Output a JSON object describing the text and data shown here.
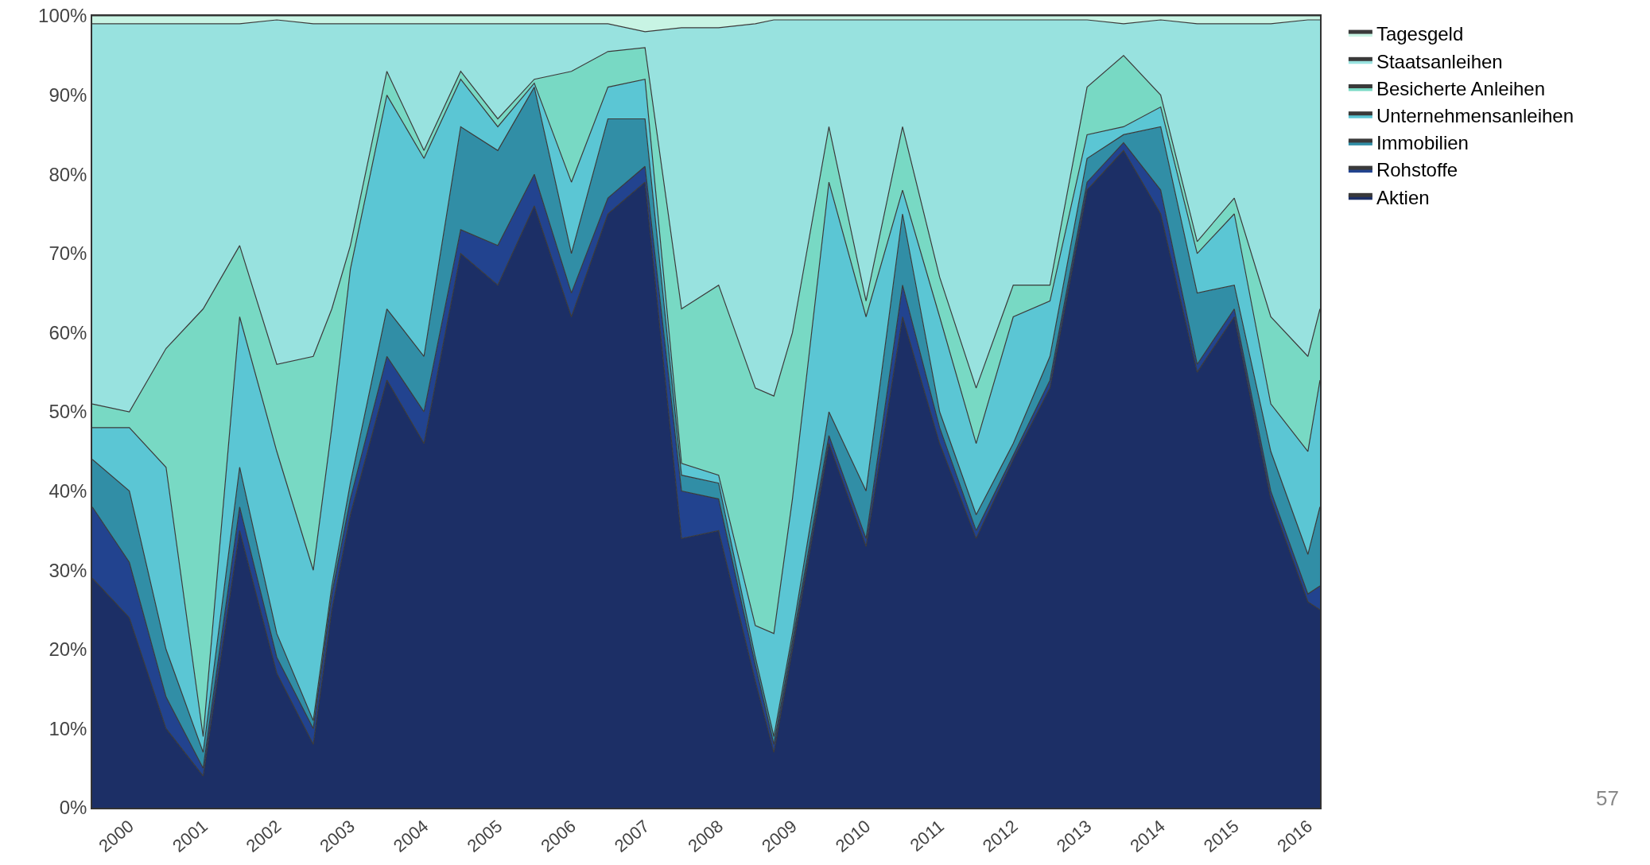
{
  "chart_data": {
    "type": "area",
    "stacked": true,
    "legend": "top right",
    "annotations": [
      "57"
    ],
    "x": [
      "1999-07",
      "2000-01",
      "2000-07",
      "2001-01",
      "2001-07",
      "2002-01",
      "2002-07",
      "2002-10",
      "2003-01",
      "2003-07",
      "2004-01",
      "2004-07",
      "2005-01",
      "2005-07",
      "2006-01",
      "2006-07",
      "2007-01",
      "2007-07",
      "2008-01",
      "2008-07",
      "2008-10",
      "2009-01",
      "2009-07",
      "2010-01",
      "2010-07",
      "2011-01",
      "2011-07",
      "2012-01",
      "2012-07",
      "2013-01",
      "2013-07",
      "2014-01",
      "2014-07",
      "2015-01",
      "2015-07",
      "2016-01",
      "2016-03"
    ],
    "xlim": [
      "1999-07",
      "2016-03"
    ],
    "xticks": [
      "2000",
      "2001",
      "2002",
      "2003",
      "2004",
      "2005",
      "2006",
      "2007",
      "2008",
      "2009",
      "2010",
      "2011",
      "2012",
      "2013",
      "2014",
      "2015",
      "2016"
    ],
    "ylim": [
      0,
      100
    ],
    "yticks": [
      {
        "value": 0,
        "label": "0%"
      },
      {
        "value": 10,
        "label": "10%"
      },
      {
        "value": 20,
        "label": "20%"
      },
      {
        "value": 30,
        "label": "30%"
      },
      {
        "value": 40,
        "label": "40%"
      },
      {
        "value": 50,
        "label": "50%"
      },
      {
        "value": 60,
        "label": "60%"
      },
      {
        "value": 70,
        "label": "70%"
      },
      {
        "value": 80,
        "label": "80%"
      },
      {
        "value": 90,
        "label": "90%"
      },
      {
        "value": 100,
        "label": "100%"
      }
    ],
    "series": [
      {
        "name": "Aktien",
        "color": "#1c2f66",
        "values": [
          29,
          24,
          10,
          4,
          35,
          17,
          8,
          25,
          37,
          54,
          46,
          70,
          66,
          76,
          62,
          75,
          79,
          34,
          35,
          16,
          7,
          20,
          46,
          33,
          62,
          46,
          34,
          44,
          53,
          78,
          83,
          75,
          55,
          62,
          39,
          26,
          25
        ]
      },
      {
        "name": "Rohstoffe",
        "color": "#22438f",
        "values": [
          9,
          7,
          4,
          1,
          3,
          2,
          2,
          2,
          2,
          3,
          4,
          3,
          5,
          4,
          3,
          2,
          2,
          6,
          4,
          2,
          1,
          1,
          1,
          1,
          4,
          2,
          1,
          0.5,
          1,
          1,
          1,
          3,
          1,
          1,
          1,
          1,
          3
        ]
      },
      {
        "name": "Immobilien",
        "color": "#318ea6",
        "values": [
          6,
          9,
          6,
          2,
          5,
          3,
          1,
          1,
          2,
          6,
          7,
          13,
          12,
          11,
          5,
          10,
          6,
          2,
          2,
          1,
          1,
          1,
          3,
          6,
          9,
          2,
          2,
          1.5,
          3,
          3,
          1,
          8,
          9,
          3,
          5,
          5,
          10
        ]
      },
      {
        "name": "Unternehmensanleihen",
        "color": "#5bc6d4",
        "values": [
          4,
          8,
          23,
          2,
          19,
          23,
          19,
          20,
          27,
          27,
          25,
          6,
          3,
          0.5,
          9,
          4,
          5,
          1.5,
          1,
          4,
          13,
          17,
          29,
          22,
          3,
          12,
          9,
          16,
          7,
          3,
          1,
          2.5,
          5,
          9,
          6,
          13,
          16
        ]
      },
      {
        "name": "Besicherte Anleihen",
        "color": "#78d9c4",
        "values": [
          3,
          2,
          15,
          54,
          9,
          11,
          27,
          15,
          3,
          3,
          1,
          1,
          1,
          0.5,
          14,
          4.5,
          4,
          19.5,
          24,
          30,
          30,
          21,
          7,
          2,
          8,
          5,
          7,
          4,
          2,
          6,
          9,
          1.5,
          1.5,
          2,
          11,
          12,
          9
        ]
      },
      {
        "name": "Staatsanleihen",
        "color": "#98e2df",
        "values": [
          48,
          49,
          41,
          36,
          28,
          43.5,
          42,
          36,
          28,
          6,
          16,
          6,
          12,
          7,
          6,
          3.5,
          2,
          35.5,
          32.5,
          46,
          47.5,
          39.5,
          13.5,
          35.5,
          13.5,
          32.5,
          46.5,
          33.5,
          33.5,
          8.5,
          4,
          9.5,
          27.5,
          22,
          37,
          42.5,
          36.5
        ]
      },
      {
        "name": "Tagesgeld",
        "color": "#c8f4e4",
        "values": [
          1,
          1,
          1,
          1,
          1,
          0.5,
          1,
          1,
          1,
          1,
          1,
          1,
          1,
          1,
          1,
          1,
          2,
          1.5,
          1.5,
          1,
          0.5,
          0.5,
          0.5,
          0.5,
          0.5,
          0.5,
          0.5,
          0.5,
          0.5,
          0.5,
          1,
          0.5,
          1,
          1,
          1,
          0.5,
          0.5
        ]
      }
    ]
  }
}
